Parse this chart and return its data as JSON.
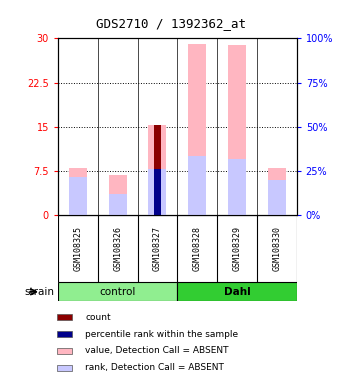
{
  "title": "GDS2710 / 1392362_at",
  "samples": [
    "GSM108325",
    "GSM108326",
    "GSM108327",
    "GSM108328",
    "GSM108329",
    "GSM108330"
  ],
  "groups": [
    "control",
    "control",
    "control",
    "Dahl",
    "Dahl",
    "Dahl"
  ],
  "ylim_left": [
    0,
    30
  ],
  "ylim_right": [
    0,
    100
  ],
  "yticks_left": [
    0,
    7.5,
    15,
    22.5,
    30
  ],
  "ytick_labels_left": [
    "0",
    "7.5",
    "15",
    "22.5",
    "30"
  ],
  "yticks_right": [
    0,
    25,
    50,
    75,
    100
  ],
  "ytick_labels_right": [
    "0%",
    "25%",
    "50%",
    "75%",
    "100%"
  ],
  "value_absent_color": "#FFB6C1",
  "rank_absent_color": "#C8C8FF",
  "count_color": "#8B0000",
  "percentile_color": "#00008B",
  "value_absent": [
    8.0,
    6.8,
    15.3,
    29.0,
    28.8,
    8.0
  ],
  "rank_absent": [
    6.5,
    3.5,
    7.8,
    10.0,
    9.5,
    6.0
  ],
  "count_val": [
    0,
    0,
    15.3,
    0,
    0,
    0
  ],
  "percentile_val": [
    0,
    0,
    7.8,
    0,
    0,
    0
  ],
  "group_control_color": "#90EE90",
  "group_dahl_color": "#32CD32",
  "left_tick_color": "#FF0000",
  "right_tick_color": "#0000FF",
  "bg_color": "#FFFFFF",
  "sample_box_color": "#C8C8C8",
  "legend_items": [
    {
      "label": "count",
      "color": "#8B0000"
    },
    {
      "label": "percentile rank within the sample",
      "color": "#00008B"
    },
    {
      "label": "value, Detection Call = ABSENT",
      "color": "#FFB6C1"
    },
    {
      "label": "rank, Detection Call = ABSENT",
      "color": "#C8C8FF"
    }
  ]
}
